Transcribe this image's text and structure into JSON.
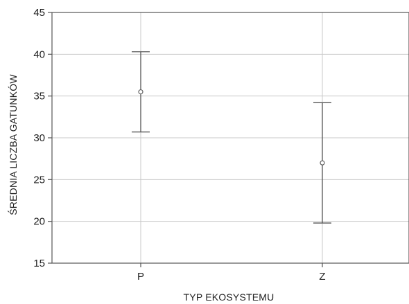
{
  "chart_data": {
    "type": "scatter",
    "subtype": "error-bar",
    "title": "",
    "xlabel": "TYP EKOSYSTEMU",
    "ylabel": "ŚREDNIA LICZBA GATUNKÓW",
    "categories": [
      "P",
      "Z"
    ],
    "series": [
      {
        "values": [
          35.5,
          27.0
        ],
        "lower": [
          30.7,
          19.8
        ],
        "upper": [
          40.3,
          34.2
        ]
      }
    ],
    "ylim": [
      15,
      45
    ],
    "yticks": [
      15,
      20,
      25,
      30,
      35,
      40,
      45
    ],
    "grid": true,
    "colors": {
      "frame": "#555555",
      "grid": "#c8c8c8",
      "marker": "#555555",
      "text": "#222222"
    }
  }
}
